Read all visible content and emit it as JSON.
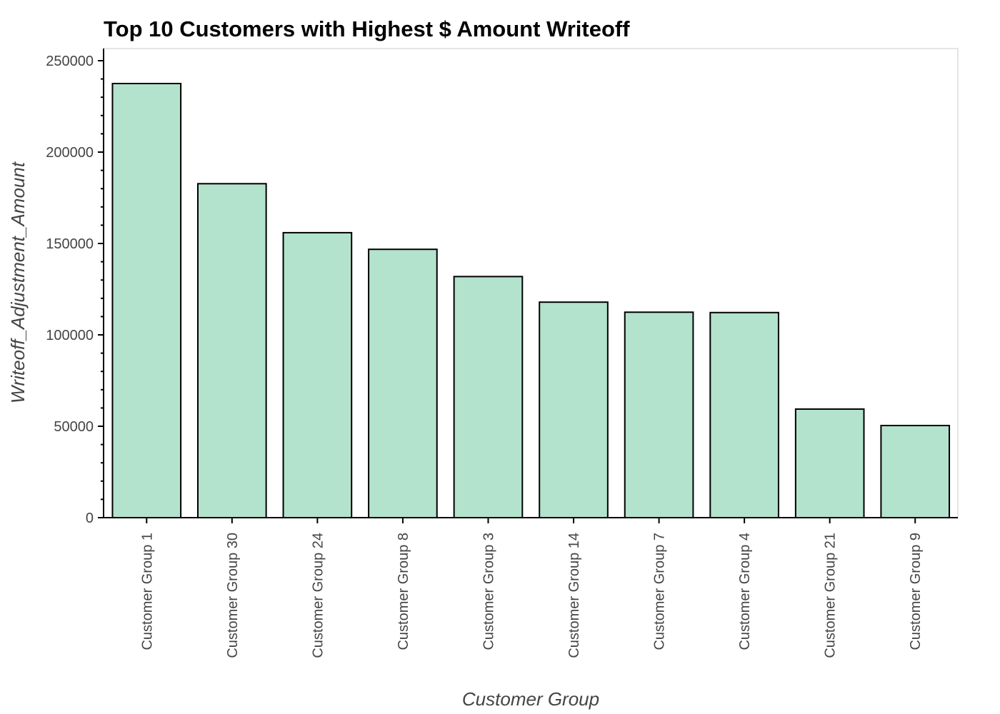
{
  "chart_data": {
    "type": "bar",
    "title": "Top 10 Customers with Highest $ Amount Writeoff",
    "xlabel": "Customer Group",
    "ylabel": "Writeoff_Adjustment_Amount",
    "categories": [
      "Customer Group 1",
      "Customer Group 30",
      "Customer Group 24",
      "Customer Group 8",
      "Customer Group 3",
      "Customer Group 14",
      "Customer Group 7",
      "Customer Group 4",
      "Customer Group 21",
      "Customer Group 9"
    ],
    "values": [
      237500,
      182700,
      155900,
      146800,
      131900,
      117900,
      112400,
      112200,
      59400,
      50400
    ],
    "ylim": [
      0,
      255000
    ],
    "yticks": [
      "0",
      "50000",
      "100000",
      "150000",
      "200000",
      "250000"
    ],
    "grid": false,
    "colors": {
      "bar_fill": "#b3e2cd",
      "bar_stroke": "#000000"
    }
  }
}
